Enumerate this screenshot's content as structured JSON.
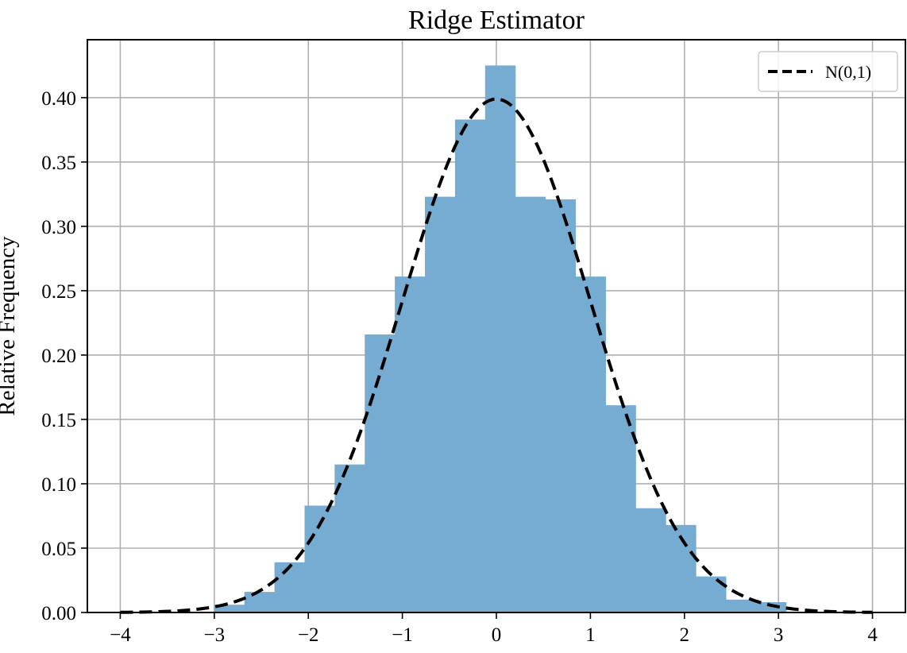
{
  "chart_data": {
    "type": "bar",
    "title": "Ridge Estimator",
    "xlabel": "",
    "ylabel": "Relative Frequency",
    "xlim": [
      -4.35,
      4.35
    ],
    "ylim": [
      0.0,
      0.445
    ],
    "grid": true,
    "legend_position": "top-right",
    "bar_color": "#76acd1",
    "curve_color": "#000000",
    "x_ticks": [
      -4,
      -3,
      -2,
      -1,
      0,
      1,
      2,
      3,
      4
    ],
    "x_tick_labels": [
      "−4",
      "−3",
      "−2",
      "−1",
      "0",
      "1",
      "2",
      "3",
      "4"
    ],
    "y_ticks": [
      0.0,
      0.05,
      0.1,
      0.15,
      0.2,
      0.25,
      0.3,
      0.35,
      0.4
    ],
    "y_tick_labels": [
      "0.00",
      "0.05",
      "0.10",
      "0.15",
      "0.20",
      "0.25",
      "0.30",
      "0.35",
      "0.40"
    ],
    "bins": [
      {
        "x0": -3.0,
        "x1": -2.68,
        "value": 0.006
      },
      {
        "x0": -2.68,
        "x1": -2.36,
        "value": 0.016
      },
      {
        "x0": -2.36,
        "x1": -2.04,
        "value": 0.039
      },
      {
        "x0": -2.04,
        "x1": -1.72,
        "value": 0.083
      },
      {
        "x0": -1.72,
        "x1": -1.4,
        "value": 0.115
      },
      {
        "x0": -1.4,
        "x1": -1.08,
        "value": 0.216
      },
      {
        "x0": -1.08,
        "x1": -0.76,
        "value": 0.261
      },
      {
        "x0": -0.76,
        "x1": -0.44,
        "value": 0.323
      },
      {
        "x0": -0.44,
        "x1": -0.12,
        "value": 0.383
      },
      {
        "x0": -0.12,
        "x1": 0.2,
        "value": 0.425
      },
      {
        "x0": 0.2,
        "x1": 0.52,
        "value": 0.323
      },
      {
        "x0": 0.52,
        "x1": 0.84,
        "value": 0.321
      },
      {
        "x0": 0.84,
        "x1": 1.16,
        "value": 0.261
      },
      {
        "x0": 1.16,
        "x1": 1.48,
        "value": 0.161
      },
      {
        "x0": 1.48,
        "x1": 1.8,
        "value": 0.081
      },
      {
        "x0": 1.8,
        "x1": 2.12,
        "value": 0.068
      },
      {
        "x0": 2.12,
        "x1": 2.44,
        "value": 0.028
      },
      {
        "x0": 2.44,
        "x1": 2.76,
        "value": 0.01
      },
      {
        "x0": 2.76,
        "x1": 3.08,
        "value": 0.008
      }
    ],
    "series": [
      {
        "name": "N(0,1)",
        "type": "line",
        "style": "dashed",
        "function": "standard-normal-pdf",
        "x_range": [
          -4,
          4
        ]
      }
    ],
    "legend": [
      {
        "label": "N(0,1)",
        "style": "dashed"
      }
    ]
  }
}
